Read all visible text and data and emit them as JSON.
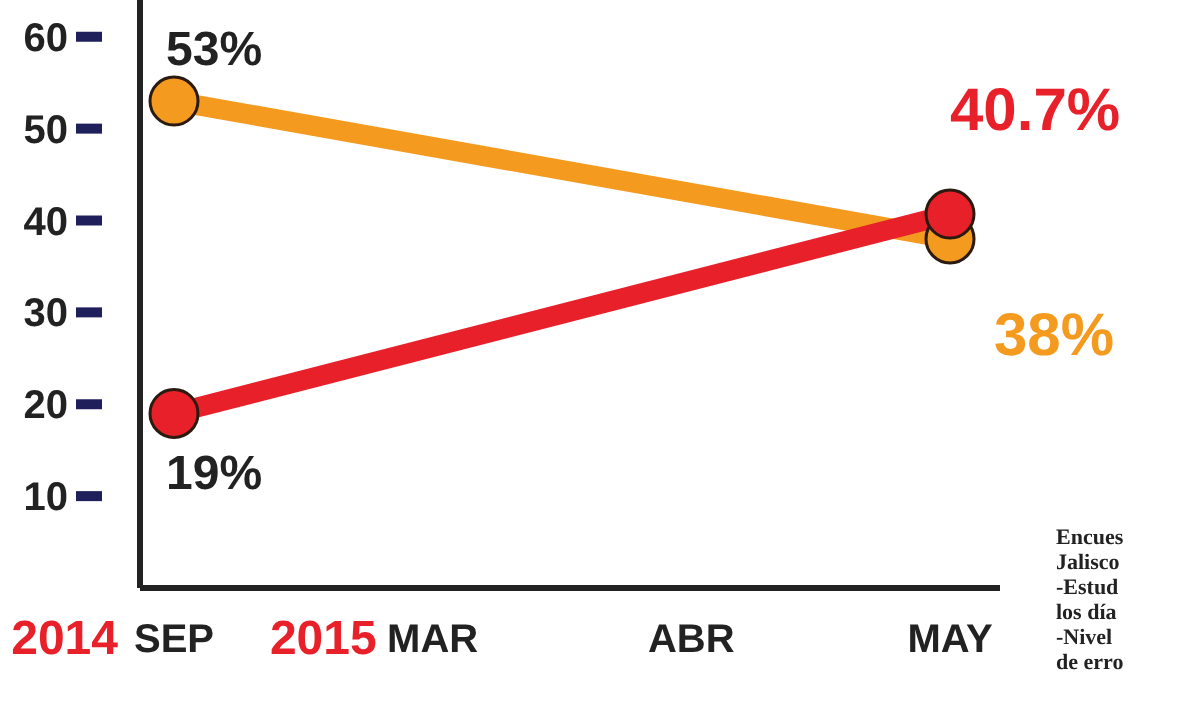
{
  "chart_data": {
    "type": "line",
    "categories": [
      "SEP",
      "MAR",
      "ABR",
      "MAY"
    ],
    "series": [
      {
        "color": "#f39a1f",
        "values": [
          53,
          null,
          null,
          38
        ],
        "value_labels": [
          "53%",
          null,
          null,
          "38%"
        ]
      },
      {
        "color": "#e8202a",
        "values": [
          19,
          null,
          null,
          40.7
        ],
        "value_labels": [
          "19%",
          null,
          null,
          "40.7%"
        ]
      }
    ],
    "ylim": [
      0,
      64
    ],
    "yticks": [
      10,
      20,
      30,
      40,
      50,
      60
    ],
    "marker": "circle",
    "grid": false,
    "annotations": [
      "2014",
      "2015",
      "Encues",
      "Jalisco",
      "-Estud",
      "los día",
      "-Nivel",
      "de erro"
    ]
  }
}
